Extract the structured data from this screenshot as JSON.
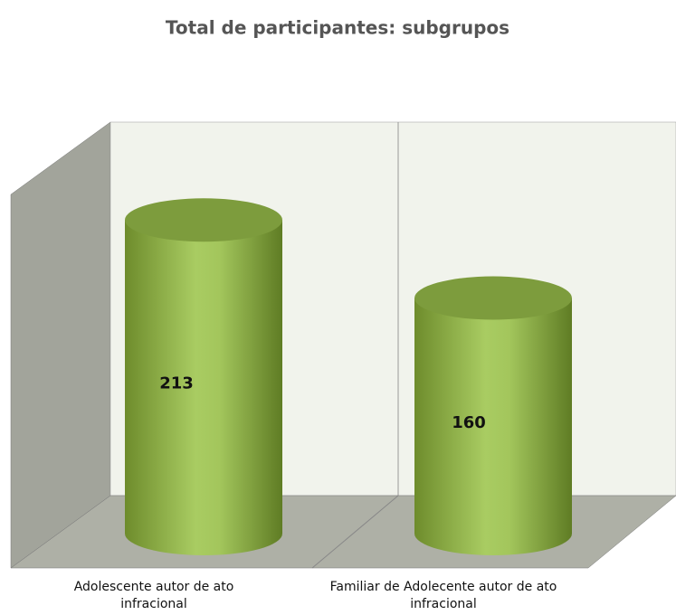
{
  "chart_data": {
    "type": "bar",
    "title": "Total de participantes: subgrupos",
    "categories": [
      "Adolescente autor de ato infracional",
      "Familiar de Adolecente autor de ato infracional"
    ],
    "values": [
      213,
      160
    ],
    "color": "#9cbf55",
    "ylim": [
      0,
      250
    ]
  }
}
